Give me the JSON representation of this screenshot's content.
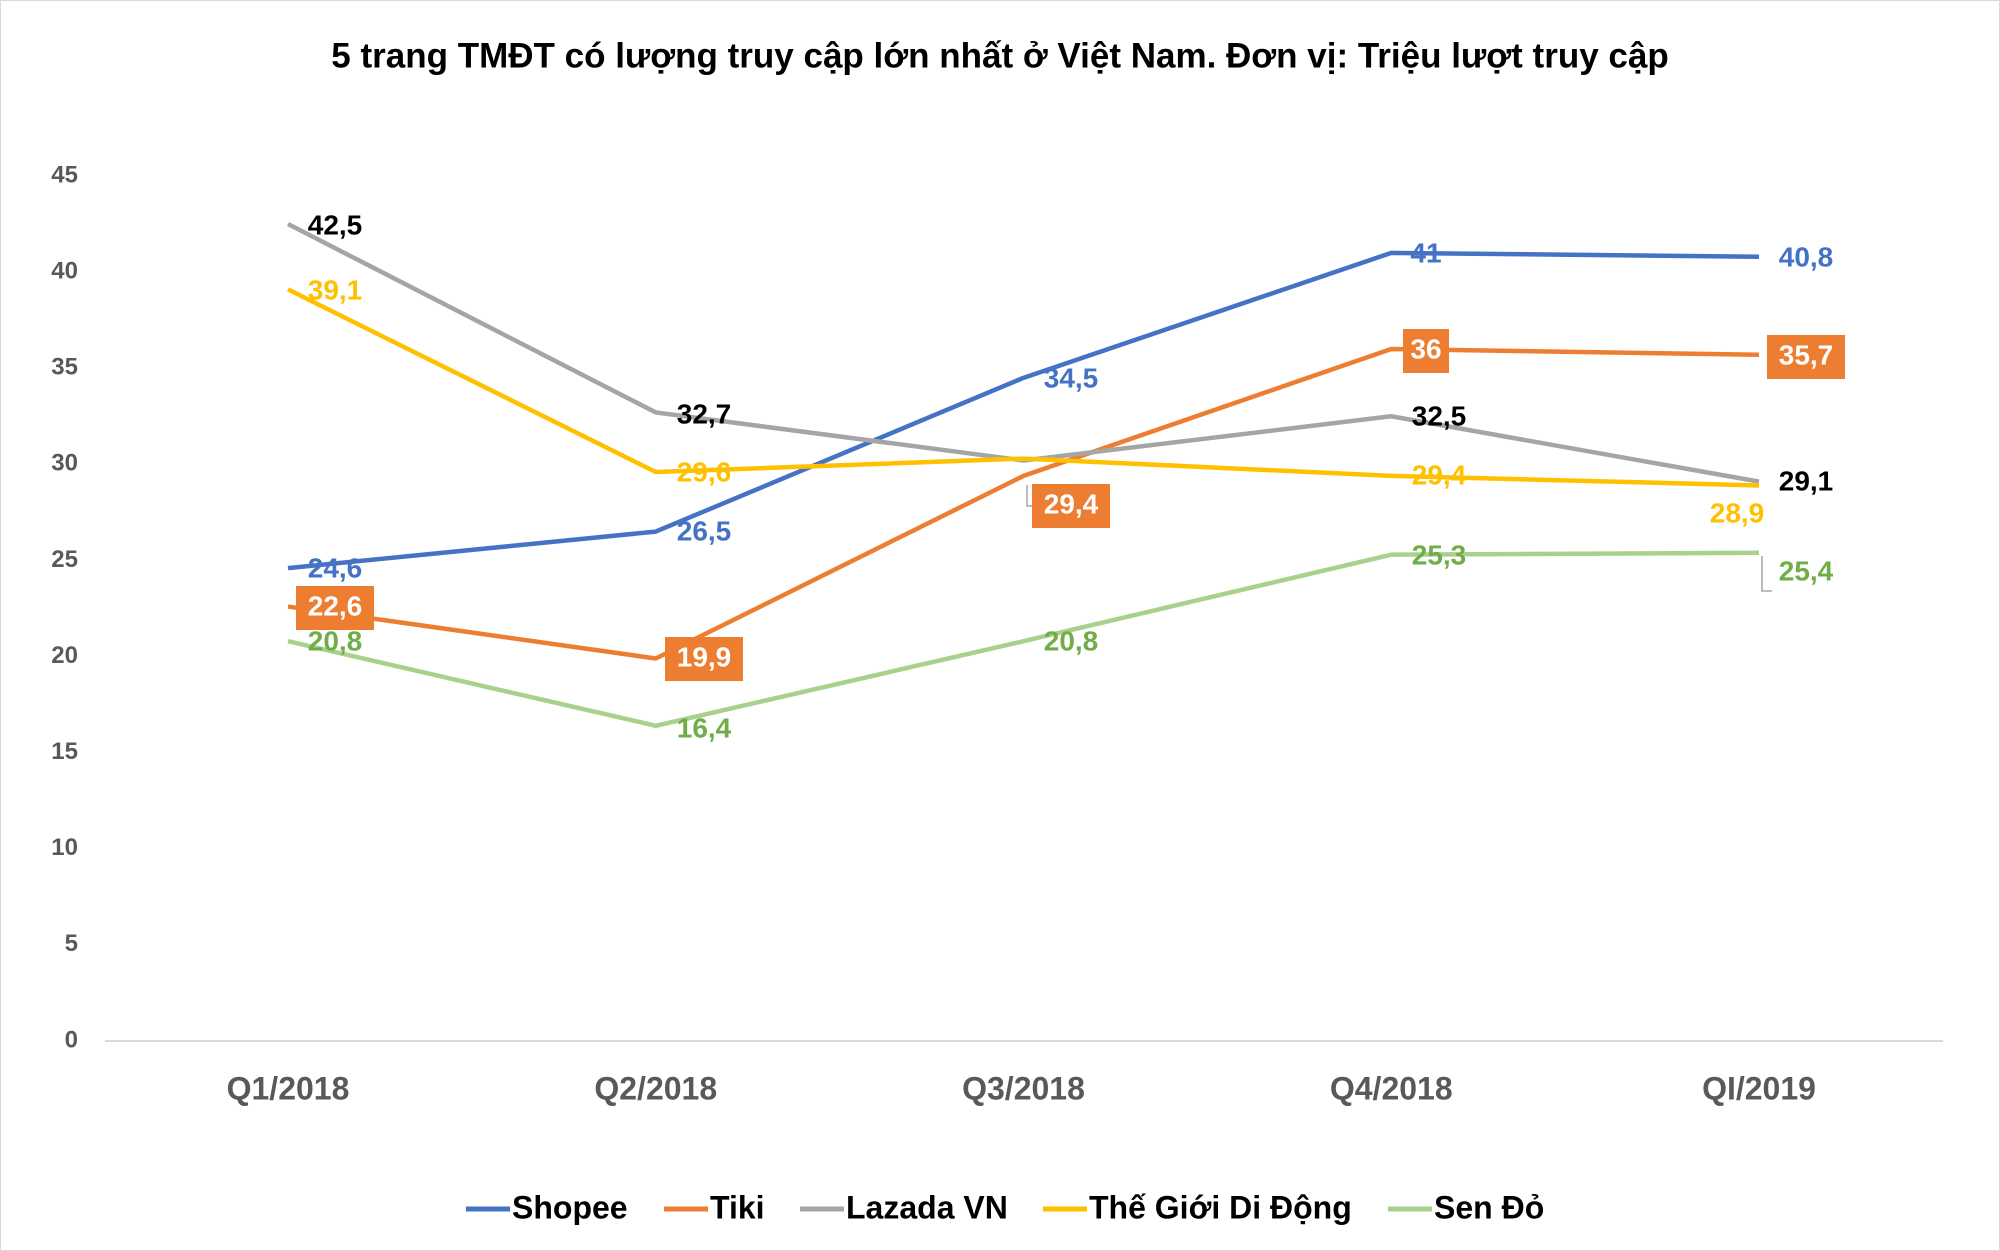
{
  "chart_data": {
    "type": "line",
    "title": "5 trang TMĐT có lượng truy cập lớn nhất ở Việt Nam. Đơn vị: Triệu lượt truy cập",
    "xlabel": "",
    "ylabel": "",
    "categories": [
      "Q1/2018",
      "Q2/2018",
      "Q3/2018",
      "Q4/2018",
      "QI/2019"
    ],
    "ylim": [
      0,
      45
    ],
    "yticks": [
      0,
      5,
      10,
      15,
      20,
      25,
      30,
      35,
      40,
      45
    ],
    "grid": false,
    "legend_position": "bottom",
    "series": [
      {
        "name": "Shopee",
        "color": "#4472C4",
        "label_color": "#4472C4",
        "values": [
          24.6,
          26.5,
          34.5,
          41,
          40.8
        ],
        "labels": [
          "24,6",
          "26,5",
          "34,5",
          "41",
          "40,8"
        ]
      },
      {
        "name": "Tiki",
        "color": "#ED7D31",
        "label_color": "#FFFFFF",
        "label_box": "#ED7D31",
        "values": [
          22.6,
          19.9,
          29.4,
          36,
          35.7
        ],
        "labels": [
          "22,6",
          "19,9",
          "29,4",
          "36",
          "35,7"
        ]
      },
      {
        "name": "Lazada VN",
        "color": "#A5A5A5",
        "label_color": "#000000",
        "values": [
          42.5,
          32.7,
          30.2,
          32.5,
          29.1
        ],
        "labels": [
          "42,5",
          "32,7",
          null,
          "32,5",
          "29,1"
        ]
      },
      {
        "name": "Thế Giới Di Động",
        "color": "#FFC000",
        "label_color": "#FFC000",
        "values": [
          39.1,
          29.6,
          30.3,
          29.4,
          28.9
        ],
        "labels": [
          "39,1",
          "29,6",
          null,
          "29,4",
          "28,9"
        ]
      },
      {
        "name": "Sen Đỏ",
        "color": "#A9D18E",
        "label_color": "#70AD47",
        "values": [
          20.8,
          16.4,
          20.8,
          25.3,
          25.4
        ],
        "labels": [
          "20,8",
          "16,4",
          "20,8",
          "25,3",
          "25,4"
        ]
      }
    ]
  }
}
